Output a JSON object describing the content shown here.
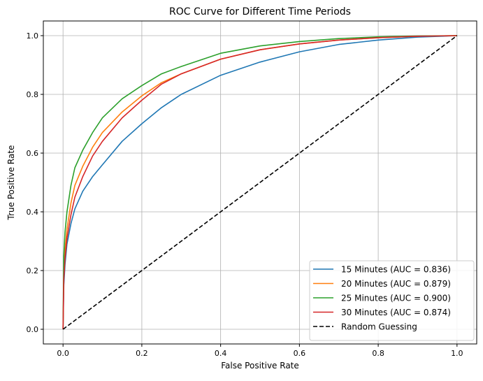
{
  "chart_data": {
    "type": "line",
    "title": "ROC Curve for Different Time Periods",
    "xlabel": "False Positive Rate",
    "ylabel": "True Positive Rate",
    "xlim": [
      -0.05,
      1.05
    ],
    "ylim": [
      -0.05,
      1.05
    ],
    "xticks": [
      "0.0",
      "0.2",
      "0.4",
      "0.6",
      "0.8",
      "1.0"
    ],
    "yticks": [
      "0.0",
      "0.2",
      "0.4",
      "0.6",
      "0.8",
      "1.0"
    ],
    "grid": true,
    "legend_position": "lower-right",
    "x": [
      0,
      0.002,
      0.005,
      0.01,
      0.02,
      0.03,
      0.05,
      0.075,
      0.1,
      0.15,
      0.2,
      0.25,
      0.3,
      0.4,
      0.5,
      0.6,
      0.7,
      0.8,
      0.9,
      1.0
    ],
    "series": [
      {
        "name": "15 Minutes (AUC = 0.836)",
        "color": "#1f77b4",
        "dashed": false,
        "values": [
          0,
          0.15,
          0.22,
          0.29,
          0.36,
          0.41,
          0.47,
          0.52,
          0.56,
          0.64,
          0.7,
          0.755,
          0.8,
          0.865,
          0.91,
          0.945,
          0.97,
          0.985,
          0.995,
          1.0
        ]
      },
      {
        "name": "20 Minutes (AUC = 0.879)",
        "color": "#ff7f0e",
        "dashed": false,
        "values": [
          0,
          0.2,
          0.27,
          0.34,
          0.43,
          0.49,
          0.555,
          0.62,
          0.67,
          0.74,
          0.795,
          0.84,
          0.87,
          0.92,
          0.952,
          0.972,
          0.985,
          0.993,
          0.998,
          1.0
        ]
      },
      {
        "name": "25 Minutes (AUC = 0.900)",
        "color": "#2ca02c",
        "dashed": false,
        "values": [
          0,
          0.25,
          0.33,
          0.4,
          0.49,
          0.55,
          0.61,
          0.67,
          0.72,
          0.785,
          0.83,
          0.87,
          0.895,
          0.94,
          0.965,
          0.98,
          0.99,
          0.996,
          0.999,
          1.0
        ]
      },
      {
        "name": "30 Minutes (AUC = 0.874)",
        "color": "#d62728",
        "dashed": false,
        "values": [
          0,
          0.17,
          0.24,
          0.31,
          0.39,
          0.45,
          0.52,
          0.59,
          0.64,
          0.72,
          0.78,
          0.835,
          0.87,
          0.92,
          0.952,
          0.972,
          0.985,
          0.993,
          0.998,
          1.0
        ]
      },
      {
        "name": "Random Guessing",
        "color": "#000000",
        "dashed": true,
        "values": [
          0,
          0.002,
          0.005,
          0.01,
          0.02,
          0.03,
          0.05,
          0.075,
          0.1,
          0.15,
          0.2,
          0.25,
          0.3,
          0.4,
          0.5,
          0.6,
          0.7,
          0.8,
          0.9,
          1.0
        ]
      }
    ]
  }
}
